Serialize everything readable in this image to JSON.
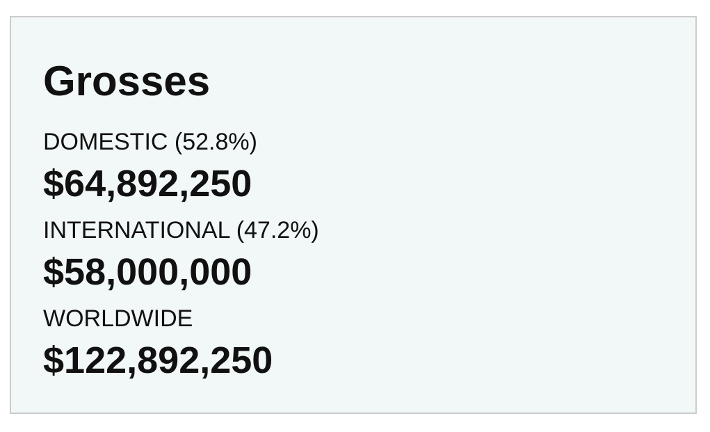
{
  "title": "Grosses",
  "rows": [
    {
      "label": "DOMESTIC (52.8%)",
      "value": "$64,892,250"
    },
    {
      "label": "INTERNATIONAL (47.2%)",
      "value": "$58,000,000"
    },
    {
      "label": "WORLDWIDE",
      "value": "$122,892,250"
    }
  ]
}
